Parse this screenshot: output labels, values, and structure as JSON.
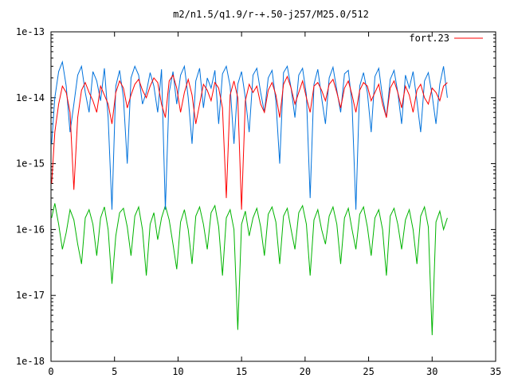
{
  "chart_data": {
    "type": "line",
    "title": "m2/n1.5/q1.9/r-+.50-j257/M25.0/512",
    "xlabel": "",
    "ylabel": "",
    "xlim": [
      0,
      35
    ],
    "ylim": [
      1e-18,
      1e-13
    ],
    "yscale": "log",
    "x_ticks": [
      "0",
      "5",
      "10",
      "15",
      "20",
      "25",
      "30",
      "35"
    ],
    "y_ticks": [
      "1e-13",
      "1e-14",
      "1e-15",
      "1e-16",
      "1e-17",
      "1e-18"
    ],
    "grid": false,
    "legend_position": "top-right",
    "series": [
      {
        "name": "fort.23",
        "color": "#ff0000",
        "x": [
          0.05,
          0.3,
          0.6,
          0.9,
          1.2,
          1.5,
          1.8,
          2.1,
          2.4,
          2.7,
          3.0,
          3.3,
          3.6,
          3.9,
          4.2,
          4.5,
          4.8,
          5.1,
          5.4,
          5.7,
          6.0,
          6.3,
          6.6,
          6.9,
          7.2,
          7.5,
          7.8,
          8.1,
          8.4,
          8.7,
          9.0,
          9.3,
          9.6,
          9.9,
          10.2,
          10.5,
          10.8,
          11.1,
          11.4,
          11.7,
          12.0,
          12.3,
          12.6,
          12.9,
          13.2,
          13.5,
          13.8,
          14.1,
          14.4,
          14.7,
          15.0,
          15.3,
          15.6,
          15.9,
          16.2,
          16.5,
          16.8,
          17.1,
          17.4,
          17.7,
          18.0,
          18.3,
          18.6,
          18.9,
          19.2,
          19.5,
          19.8,
          20.1,
          20.4,
          20.7,
          21.0,
          21.3,
          21.6,
          21.9,
          22.2,
          22.5,
          22.8,
          23.1,
          23.4,
          23.7,
          24.0,
          24.3,
          24.6,
          24.9,
          25.2,
          25.5,
          25.8,
          26.1,
          26.4,
          26.7,
          27.0,
          27.3,
          27.6,
          27.9,
          28.2,
          28.5,
          28.8,
          29.1,
          29.4,
          29.7,
          30.0,
          30.3,
          30.6,
          30.9,
          31.2
        ],
        "y": [
          5e-16,
          3e-15,
          8e-15,
          1.5e-14,
          1.2e-14,
          6e-15,
          4e-16,
          5e-15,
          1.3e-14,
          1.7e-14,
          1.2e-14,
          9e-15,
          6e-15,
          1.5e-14,
          1.1e-14,
          8e-15,
          4e-15,
          1.2e-14,
          1.8e-14,
          1.4e-14,
          7e-15,
          1.1e-14,
          1.6e-14,
          1.9e-14,
          1.3e-14,
          1e-14,
          1.5e-14,
          2e-14,
          1.7e-14,
          8e-15,
          5e-15,
          1.8e-14,
          2.2e-14,
          1.4e-14,
          6e-15,
          1.2e-14,
          1.9e-14,
          1.1e-14,
          4e-15,
          8e-15,
          1.6e-14,
          1.3e-14,
          9e-15,
          1.7e-14,
          1.4e-14,
          7e-15,
          3e-16,
          1.1e-14,
          1.8e-14,
          1e-14,
          2e-16,
          9e-15,
          1.6e-14,
          1.2e-14,
          1.5e-14,
          8e-15,
          6e-15,
          1.3e-14,
          1.7e-14,
          1.1e-14,
          5e-15,
          1.6e-14,
          2.1e-14,
          1.4e-14,
          8e-15,
          1.2e-14,
          1.8e-14,
          1e-14,
          6e-15,
          1.5e-14,
          1.7e-14,
          1.3e-14,
          9e-15,
          1.6e-14,
          1.9e-14,
          1.2e-14,
          7e-15,
          1.4e-14,
          1.8e-14,
          1.1e-14,
          6e-15,
          1.3e-14,
          1.7e-14,
          1.5e-14,
          9e-15,
          1.2e-14,
          1.6e-14,
          8e-15,
          5e-15,
          1.4e-14,
          1.8e-14,
          1.2e-14,
          7e-15,
          1.5e-14,
          1.1e-14,
          6e-15,
          1.3e-14,
          1.6e-14,
          1e-14,
          8e-15,
          1.4e-14,
          1.2e-14,
          9e-15,
          1.5e-14,
          1.7e-14
        ]
      },
      {
        "name": "",
        "color": "#0072dc",
        "x": [
          0.05,
          0.3,
          0.6,
          0.9,
          1.2,
          1.5,
          1.8,
          2.1,
          2.4,
          2.7,
          3.0,
          3.3,
          3.6,
          3.9,
          4.2,
          4.5,
          4.8,
          5.1,
          5.4,
          5.7,
          6.0,
          6.3,
          6.6,
          6.9,
          7.2,
          7.5,
          7.8,
          8.1,
          8.4,
          8.7,
          9.0,
          9.3,
          9.6,
          9.9,
          10.2,
          10.5,
          10.8,
          11.1,
          11.4,
          11.7,
          12.0,
          12.3,
          12.6,
          12.9,
          13.2,
          13.5,
          13.8,
          14.1,
          14.4,
          14.7,
          15.0,
          15.3,
          15.6,
          15.9,
          16.2,
          16.5,
          16.8,
          17.1,
          17.4,
          17.7,
          18.0,
          18.3,
          18.6,
          18.9,
          19.2,
          19.5,
          19.8,
          20.1,
          20.4,
          20.7,
          21.0,
          21.3,
          21.6,
          21.9,
          22.2,
          22.5,
          22.8,
          23.1,
          23.4,
          23.7,
          24.0,
          24.3,
          24.6,
          24.9,
          25.2,
          25.5,
          25.8,
          26.1,
          26.4,
          26.7,
          27.0,
          27.3,
          27.6,
          27.9,
          28.2,
          28.5,
          28.8,
          29.1,
          29.4,
          29.7,
          30.0,
          30.3,
          30.6,
          30.9,
          31.2
        ],
        "y": [
          2e-15,
          1e-14,
          2.5e-14,
          3.5e-14,
          1.5e-14,
          3e-15,
          8e-15,
          2.2e-14,
          3e-14,
          1.2e-14,
          6e-15,
          2.5e-14,
          1.8e-14,
          9e-15,
          2.8e-14,
          5e-15,
          2e-16,
          1.5e-14,
          2.6e-14,
          1e-14,
          1e-15,
          2e-14,
          3e-14,
          2.2e-14,
          8e-15,
          1.2e-14,
          2.4e-14,
          1.5e-14,
          6e-15,
          2.7e-14,
          2e-16,
          1.2e-14,
          2.5e-14,
          8e-15,
          2.2e-14,
          3e-14,
          1e-14,
          2e-15,
          1.8e-14,
          2.8e-14,
          7e-15,
          2e-14,
          1.4e-14,
          2.6e-14,
          4e-15,
          2.3e-14,
          3e-14,
          1.5e-14,
          2e-15,
          1.6e-14,
          2.5e-14,
          1e-14,
          3e-15,
          2.2e-14,
          2.8e-14,
          1.2e-14,
          6e-15,
          2e-14,
          2.6e-14,
          9e-15,
          1e-15,
          2.4e-14,
          3e-14,
          1.4e-14,
          5e-15,
          2.2e-14,
          2.8e-14,
          1.1e-14,
          3e-16,
          1.6e-14,
          2.7e-14,
          1e-14,
          4e-15,
          2e-14,
          2.9e-14,
          1.3e-14,
          6e-15,
          2.3e-14,
          2.6e-14,
          8e-15,
          2e-16,
          1.5e-14,
          2.4e-14,
          1.2e-14,
          3e-15,
          2.1e-14,
          2.8e-14,
          1e-14,
          5e-15,
          1.9e-14,
          2.6e-14,
          1.2e-14,
          4e-15,
          2.2e-14,
          1.4e-14,
          2.5e-14,
          9e-15,
          3e-15,
          1.8e-14,
          2.4e-14,
          1.1e-14,
          4e-15,
          1.6e-14,
          3e-14,
          1e-14
        ]
      },
      {
        "name": "",
        "color": "#00b400",
        "x": [
          0.05,
          0.3,
          0.6,
          0.9,
          1.2,
          1.5,
          1.8,
          2.1,
          2.4,
          2.7,
          3.0,
          3.3,
          3.6,
          3.9,
          4.2,
          4.5,
          4.8,
          5.1,
          5.4,
          5.7,
          6.0,
          6.3,
          6.6,
          6.9,
          7.2,
          7.5,
          7.8,
          8.1,
          8.4,
          8.7,
          9.0,
          9.3,
          9.6,
          9.9,
          10.2,
          10.5,
          10.8,
          11.1,
          11.4,
          11.7,
          12.0,
          12.3,
          12.6,
          12.9,
          13.2,
          13.5,
          13.8,
          14.1,
          14.4,
          14.7,
          15.0,
          15.3,
          15.6,
          15.9,
          16.2,
          16.5,
          16.8,
          17.1,
          17.4,
          17.7,
          18.0,
          18.3,
          18.6,
          18.9,
          19.2,
          19.5,
          19.8,
          20.1,
          20.4,
          20.7,
          21.0,
          21.3,
          21.6,
          21.9,
          22.2,
          22.5,
          22.8,
          23.1,
          23.4,
          23.7,
          24.0,
          24.3,
          24.6,
          24.9,
          25.2,
          25.5,
          25.8,
          26.1,
          26.4,
          26.7,
          27.0,
          27.3,
          27.6,
          27.9,
          28.2,
          28.5,
          28.8,
          29.1,
          29.4,
          29.7,
          30.0,
          30.3,
          30.6,
          30.9,
          31.2
        ],
        "y": [
          1.5e-16,
          2.5e-16,
          1.2e-16,
          5e-17,
          9e-17,
          2e-16,
          1.4e-16,
          6e-17,
          3e-17,
          1.5e-16,
          2e-16,
          1.2e-16,
          4e-17,
          1.5e-16,
          2.2e-16,
          1e-16,
          1.5e-17,
          8e-17,
          1.8e-16,
          2.1e-16,
          1.1e-16,
          4e-17,
          1.6e-16,
          2.2e-16,
          1e-16,
          2e-17,
          1.2e-16,
          1.8e-16,
          7e-17,
          1.5e-16,
          2.3e-16,
          1.4e-16,
          6e-17,
          2.5e-17,
          1.3e-16,
          2e-16,
          1e-16,
          3e-17,
          1.6e-16,
          2.2e-16,
          1.2e-16,
          5e-17,
          1.8e-16,
          2.3e-16,
          1.1e-16,
          2e-17,
          1.5e-16,
          2e-16,
          1e-16,
          3e-18,
          1.2e-16,
          1.9e-16,
          8e-17,
          1.5e-16,
          2.1e-16,
          1.1e-16,
          4e-17,
          1.7e-16,
          2.2e-16,
          1.3e-16,
          3e-17,
          1.6e-16,
          2.1e-16,
          1e-16,
          5e-17,
          1.8e-16,
          2.3e-16,
          1.2e-16,
          2e-17,
          1.4e-16,
          2e-16,
          1e-16,
          6e-17,
          1.6e-16,
          2.2e-16,
          1.2e-16,
          3e-17,
          1.5e-16,
          2.1e-16,
          1e-16,
          5e-17,
          1.7e-16,
          2.2e-16,
          1.1e-16,
          4e-17,
          1.5e-16,
          2e-16,
          1e-16,
          2e-17,
          1.6e-16,
          2.1e-16,
          1.2e-16,
          5e-17,
          1.4e-16,
          2e-16,
          1e-16,
          3e-17,
          1.6e-16,
          2.2e-16,
          1.1e-16,
          2.5e-18,
          1.3e-16,
          1.9e-16,
          1e-16,
          1.5e-16
        ]
      }
    ]
  }
}
